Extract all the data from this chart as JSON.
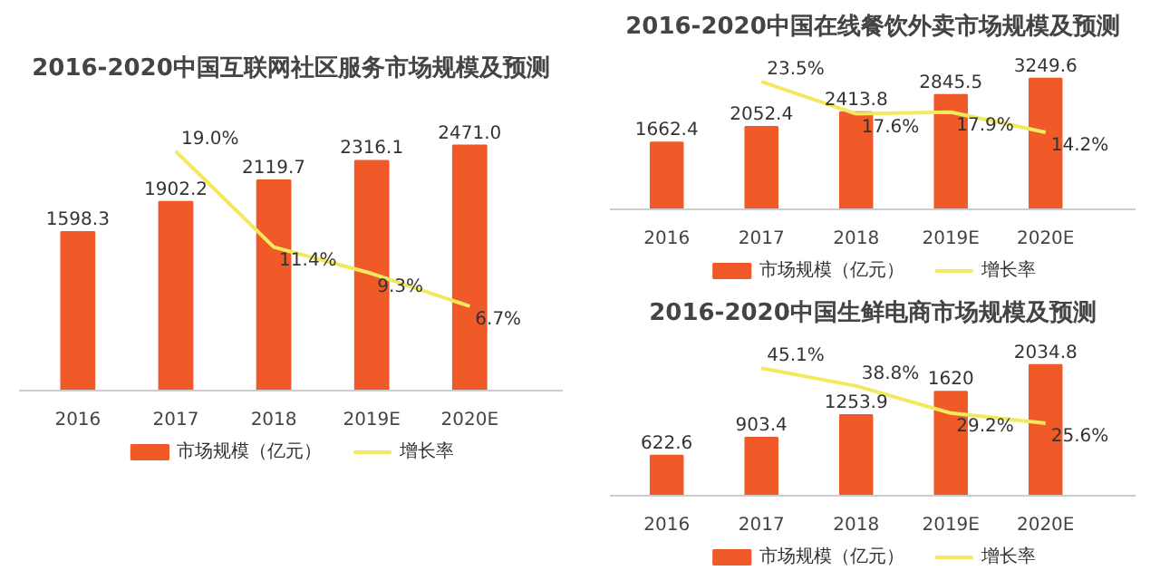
{
  "chart_data": [
    {
      "type": "bar",
      "title": "2016-2020中国互联网社区服务市场规模及预测",
      "categories": [
        "2016",
        "2017",
        "2018",
        "2019E",
        "2020E"
      ],
      "legend": "bottom",
      "tick_labels": "x",
      "series": [
        {
          "name": "市场规模（亿元）",
          "color": "#f05a28",
          "values": [
            1598.3,
            1902.2,
            2119.7,
            2316.1,
            2471.0
          ],
          "value_labels": [
            "1598.3",
            "1902.2",
            "2119.7",
            "2316.1",
            "2471.0"
          ]
        },
        {
          "name": "增长率",
          "type": "line",
          "axis": "y2",
          "color": "#f2ea5e",
          "values": [
            null,
            19.0,
            11.4,
            9.3,
            6.7
          ],
          "value_labels": [
            null,
            "19.0%",
            "11.4%",
            "9.3%",
            "6.7%"
          ]
        }
      ]
    },
    {
      "type": "bar",
      "title": "2016-2020中国在线餐饮外卖市场规模及预测",
      "categories": [
        "2016",
        "2017",
        "2018",
        "2019E",
        "2020E"
      ],
      "legend": "bottom",
      "tick_labels": "x",
      "series": [
        {
          "name": "市场规模（亿元）",
          "color": "#f05a28",
          "values": [
            1662.4,
            2052.4,
            2413.8,
            2845.5,
            3249.6
          ],
          "value_labels": [
            "1662.4",
            "2052.4",
            "2413.8",
            "2845.5",
            "3249.6"
          ]
        },
        {
          "name": "增长率",
          "type": "line",
          "axis": "y2",
          "color": "#f2ea5e",
          "values": [
            null,
            23.5,
            17.6,
            17.9,
            14.2
          ],
          "value_labels": [
            null,
            "23.5%",
            "17.6%",
            "17.9%",
            "14.2%"
          ]
        }
      ]
    },
    {
      "type": "bar",
      "title": "2016-2020中国生鲜电商市场规模及预测",
      "categories": [
        "2016",
        "2017",
        "2018",
        "2019E",
        "2020E"
      ],
      "legend": "bottom",
      "tick_labels": "x",
      "series": [
        {
          "name": "市场规模（亿元）",
          "color": "#f05a28",
          "values": [
            622.6,
            903.4,
            1253.9,
            1620,
            2034.8
          ],
          "value_labels": [
            "622.6",
            "903.4",
            "1253.9",
            "1620",
            "2034.8"
          ]
        },
        {
          "name": "增长率",
          "type": "line",
          "axis": "y2",
          "color": "#f2ea5e",
          "values": [
            null,
            45.1,
            38.8,
            29.2,
            25.6
          ],
          "value_labels": [
            null,
            "45.1%",
            "38.8%",
            "29.2%",
            "25.6%"
          ]
        }
      ]
    }
  ]
}
